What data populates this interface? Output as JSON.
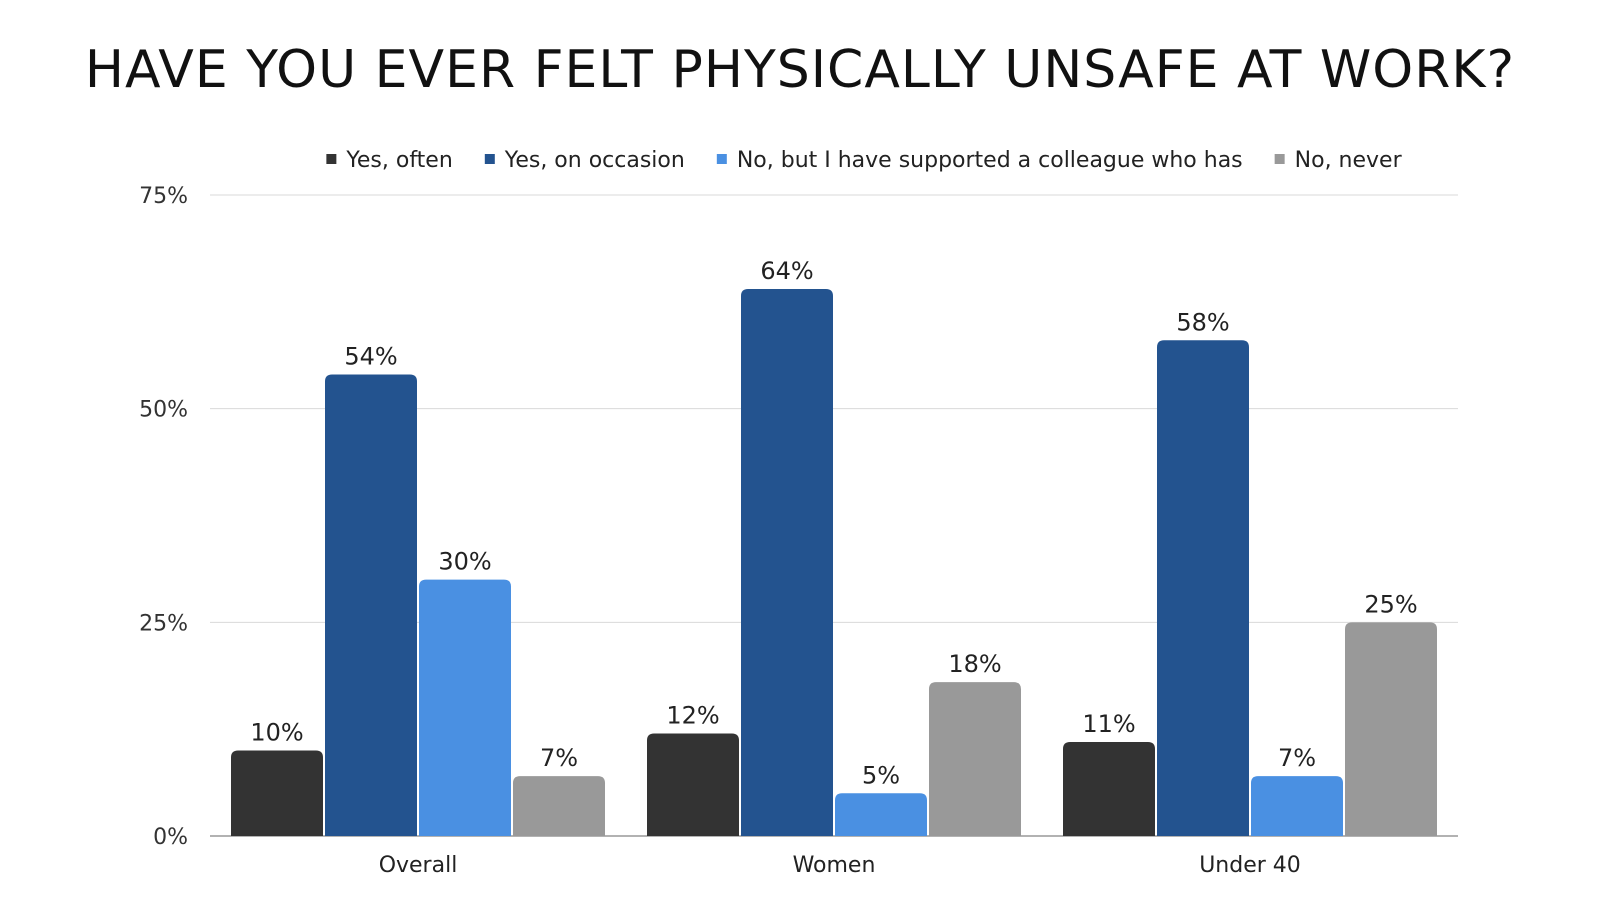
{
  "chart_data": {
    "type": "bar",
    "title": "HAVE YOU EVER FELT PHYSICALLY UNSAFE AT WORK?",
    "xlabel": "",
    "ylabel": "",
    "categories": [
      "Overall",
      "Women",
      "Under 40"
    ],
    "series": [
      {
        "name": "Yes, often",
        "values": [
          10,
          12,
          11
        ],
        "labels": [
          "10%",
          "12%",
          "11%"
        ],
        "color": "#333333"
      },
      {
        "name": "Yes, on occasion",
        "values": [
          54,
          64,
          58
        ],
        "labels": [
          "54%",
          "64%",
          "58%"
        ],
        "color": "#23538f"
      },
      {
        "name": "No, but I have supported a colleague who has",
        "values": [
          30,
          5,
          7
        ],
        "labels": [
          "30%",
          "5%",
          "7%"
        ],
        "color": "#4a90e2"
      },
      {
        "name": "No, never",
        "values": [
          7,
          18,
          25
        ],
        "labels": [
          "7%",
          "18%",
          "25%"
        ],
        "color": "#999999"
      }
    ],
    "ylim": [
      0,
      75
    ],
    "yticks": [
      0,
      25,
      50,
      75
    ],
    "ytick_labels": [
      "0%",
      "25%",
      "50%",
      "75%"
    ],
    "grid": true,
    "legend_position": "top"
  }
}
